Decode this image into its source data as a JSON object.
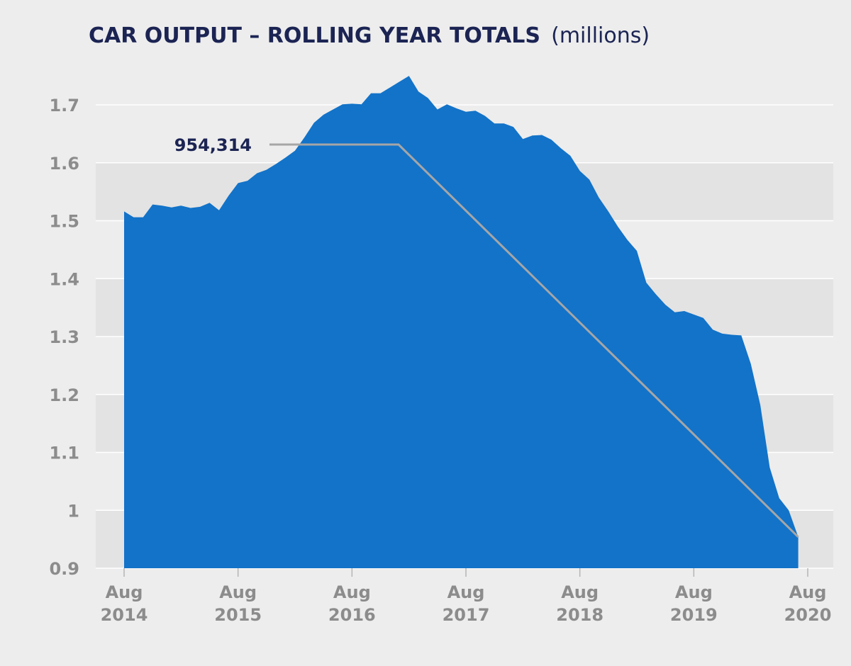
{
  "chart_data": {
    "type": "area",
    "title": "CAR OUTPUT – ROLLING YEAR TOTALS",
    "subtitle": "(millions)",
    "ylim": [
      0.9,
      1.75
    ],
    "yticks": [
      0.9,
      1,
      1.1,
      1.2,
      1.3,
      1.4,
      1.5,
      1.6,
      1.7
    ],
    "ytick_labels": [
      "0.9",
      "1",
      "1.1",
      "1.2",
      "1.3",
      "1.4",
      "1.5",
      "1.6",
      "1.7"
    ],
    "xticks": [
      {
        "label": [
          "Aug",
          "2014"
        ],
        "x": 0
      },
      {
        "label": [
          "Aug",
          "2015"
        ],
        "x": 12
      },
      {
        "label": [
          "Aug",
          "2016"
        ],
        "x": 24
      },
      {
        "label": [
          "Aug",
          "2017"
        ],
        "x": 36
      },
      {
        "label": [
          "Aug",
          "2018"
        ],
        "x": 48
      },
      {
        "label": [
          "Aug",
          "2019"
        ],
        "x": 60
      },
      {
        "label": [
          "Aug",
          "2020"
        ],
        "x": 72
      }
    ],
    "series": [
      {
        "values": [
          1.516,
          1.506,
          1.506,
          1.528,
          1.526,
          1.523,
          1.526,
          1.522,
          1.524,
          1.531,
          1.518,
          1.543,
          1.565,
          1.569,
          1.582,
          1.588,
          1.598,
          1.609,
          1.621,
          1.644,
          1.669,
          1.683,
          1.692,
          1.701,
          1.702,
          1.701,
          1.72,
          1.72,
          1.73,
          1.74,
          1.75,
          1.723,
          1.712,
          1.692,
          1.701,
          1.694,
          1.688,
          1.69,
          1.681,
          1.668,
          1.668,
          1.662,
          1.641,
          1.647,
          1.648,
          1.64,
          1.625,
          1.612,
          1.586,
          1.571,
          1.54,
          1.516,
          1.49,
          1.467,
          1.448,
          1.393,
          1.373,
          1.355,
          1.342,
          1.344,
          1.338,
          1.332,
          1.312,
          1.305,
          1.303,
          1.302,
          1.253,
          1.182,
          1.074,
          1.021,
          1.0,
          0.954
        ]
      }
    ],
    "annotation": {
      "text": "954,314",
      "x": 71,
      "y": 0.954
    },
    "colors": {
      "area": "#1273c9",
      "band": "#e3e3e3",
      "background": "#ededed",
      "leader": "#a6a6a6"
    },
    "grid": true
  }
}
